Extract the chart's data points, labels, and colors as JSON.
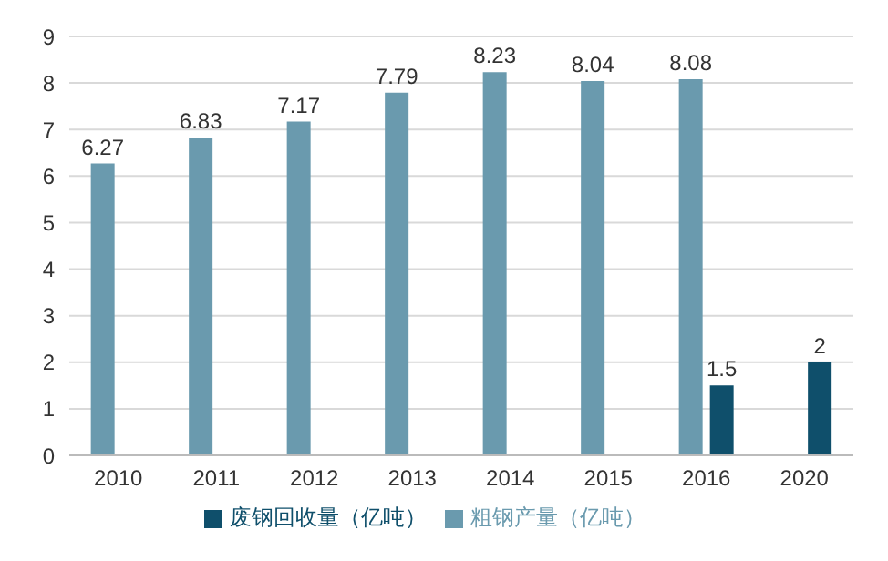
{
  "chart_data": {
    "type": "bar",
    "categories": [
      "2010",
      "2011",
      "2012",
      "2013",
      "2014",
      "2015",
      "2016",
      "2020"
    ],
    "series": [
      {
        "name": "粗钢产量（亿吨）",
        "color": "#6a9aae",
        "values": [
          6.27,
          6.83,
          7.17,
          7.79,
          8.23,
          8.04,
          8.08,
          null
        ]
      },
      {
        "name": "废钢回收量（亿吨）",
        "color": "#0f4f6b",
        "values": [
          null,
          null,
          null,
          null,
          null,
          null,
          1.5,
          2
        ]
      }
    ],
    "ylim": [
      0,
      9
    ],
    "yticks": [
      0,
      1,
      2,
      3,
      4,
      5,
      6,
      7,
      8,
      9
    ],
    "grid": "y",
    "legend": "bottom",
    "data_labels": true
  }
}
